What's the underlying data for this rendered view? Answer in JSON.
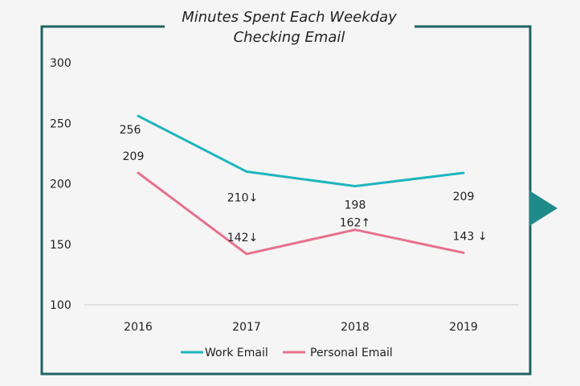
{
  "chart_data": {
    "type": "line",
    "title_lines": [
      "Minutes Spent Each Weekday",
      "Checking Email"
    ],
    "categories": [
      "2016",
      "2017",
      "2018",
      "2019"
    ],
    "yticks": [
      100,
      150,
      200,
      250,
      300
    ],
    "ylim": [
      100,
      300
    ],
    "grid": false,
    "legend_position": "bottom",
    "series": [
      {
        "name": "Work Email",
        "color": "#1fb5bf",
        "values": [
          256,
          210,
          198,
          209
        ],
        "labels": [
          "256",
          "210↓",
          "198",
          "209"
        ]
      },
      {
        "name": "Personal Email",
        "color": "#e8708e",
        "values": [
          209,
          142,
          162,
          143
        ],
        "labels": [
          "209",
          "142↓",
          "162↑",
          "143 ↓"
        ]
      }
    ]
  },
  "colors": {
    "frame": "#1f6464",
    "arrow": "#1f8a8a",
    "axis": "#cccccc"
  },
  "icons": {
    "next": "triangle-right-icon"
  }
}
